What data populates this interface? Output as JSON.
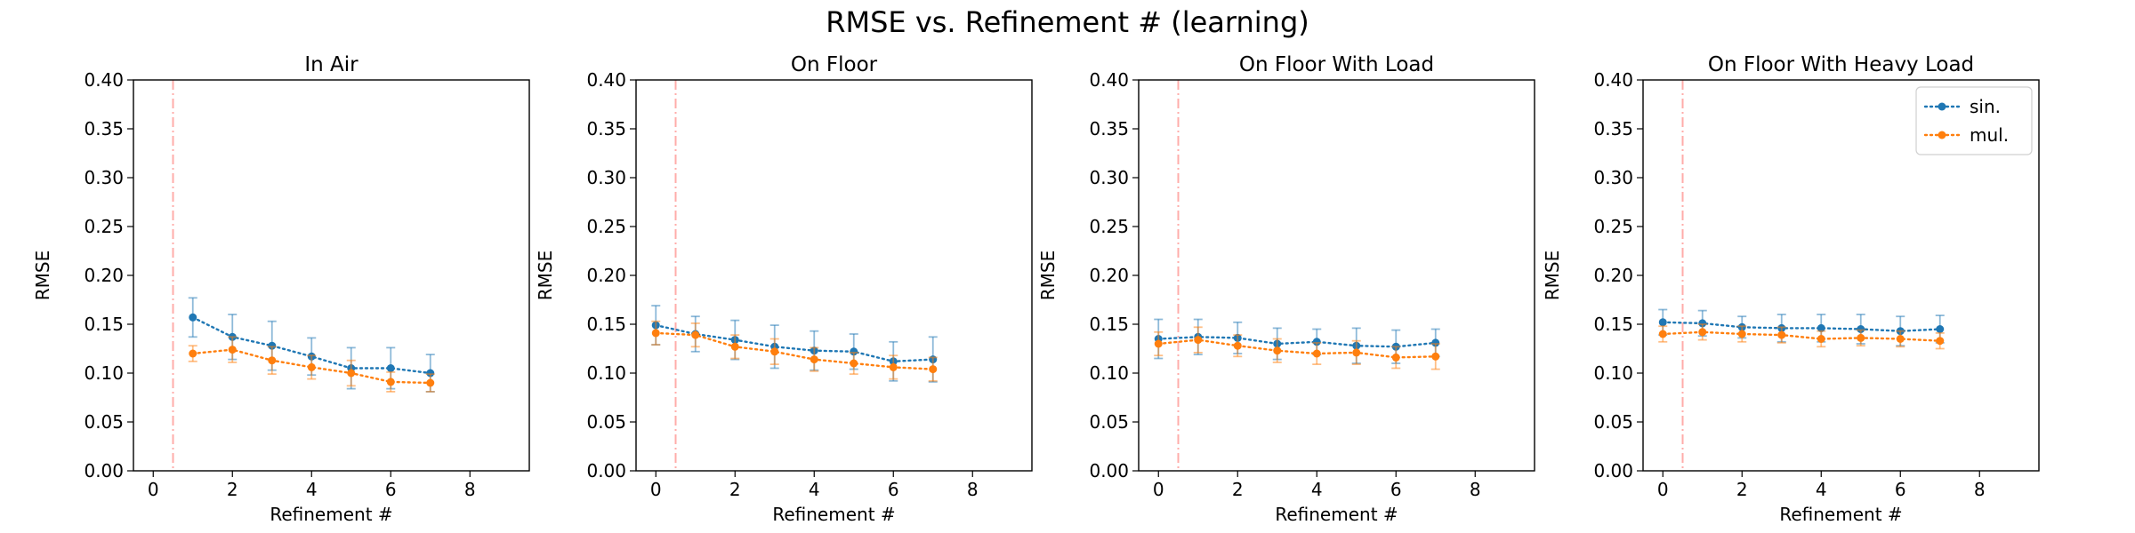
{
  "figure": {
    "title": "RMSE vs. Refinement # (learning)"
  },
  "chart_data": [
    {
      "type": "line",
      "title": "In Air",
      "xlabel": "Refinement #",
      "ylabel": "RMSE",
      "xlim": [
        -0.5,
        9.5
      ],
      "ylim": [
        0,
        0.4
      ],
      "xticks": [
        0,
        2,
        4,
        6,
        8
      ],
      "yticks": [
        0.0,
        0.05,
        0.1,
        0.15,
        0.2,
        0.25,
        0.3,
        0.35,
        0.4
      ],
      "vline_x": 0.5,
      "grid": false,
      "series": [
        {
          "name": "sin.",
          "color": "#1f77b4",
          "x": [
            1,
            2,
            3,
            4,
            5,
            6,
            7
          ],
          "values": [
            0.157,
            0.137,
            0.128,
            0.117,
            0.105,
            0.105,
            0.1
          ],
          "errors": [
            0.02,
            0.023,
            0.025,
            0.019,
            0.021,
            0.021,
            0.019
          ]
        },
        {
          "name": "mul.",
          "color": "#ff7f0e",
          "x": [
            1,
            2,
            3,
            4,
            5,
            6,
            7
          ],
          "values": [
            0.12,
            0.124,
            0.113,
            0.106,
            0.1,
            0.091,
            0.09
          ],
          "errors": [
            0.008,
            0.013,
            0.014,
            0.012,
            0.013,
            0.01,
            0.009
          ]
        }
      ]
    },
    {
      "type": "line",
      "title": "On Floor",
      "xlabel": "Refinement #",
      "ylabel": "RMSE",
      "xlim": [
        -0.5,
        9.5
      ],
      "ylim": [
        0,
        0.4
      ],
      "xticks": [
        0,
        2,
        4,
        6,
        8
      ],
      "yticks": [
        0.0,
        0.05,
        0.1,
        0.15,
        0.2,
        0.25,
        0.3,
        0.35,
        0.4
      ],
      "vline_x": 0.5,
      "grid": false,
      "series": [
        {
          "name": "sin.",
          "color": "#1f77b4",
          "x": [
            0,
            1,
            2,
            3,
            4,
            5,
            6,
            7
          ],
          "values": [
            0.149,
            0.14,
            0.134,
            0.127,
            0.123,
            0.122,
            0.112,
            0.114
          ],
          "errors": [
            0.02,
            0.018,
            0.02,
            0.022,
            0.02,
            0.018,
            0.02,
            0.023
          ]
        },
        {
          "name": "mul.",
          "color": "#ff7f0e",
          "x": [
            0,
            1,
            2,
            3,
            4,
            5,
            6,
            7
          ],
          "values": [
            0.141,
            0.139,
            0.127,
            0.122,
            0.114,
            0.11,
            0.106,
            0.104
          ],
          "errors": [
            0.012,
            0.012,
            0.012,
            0.013,
            0.012,
            0.011,
            0.012,
            0.012
          ]
        }
      ]
    },
    {
      "type": "line",
      "title": "On Floor With Load",
      "xlabel": "Refinement #",
      "ylabel": "RMSE",
      "xlim": [
        -0.5,
        9.5
      ],
      "ylim": [
        0,
        0.4
      ],
      "xticks": [
        0,
        2,
        4,
        6,
        8
      ],
      "yticks": [
        0.0,
        0.05,
        0.1,
        0.15,
        0.2,
        0.25,
        0.3,
        0.35,
        0.4
      ],
      "vline_x": 0.5,
      "grid": false,
      "series": [
        {
          "name": "sin.",
          "color": "#1f77b4",
          "x": [
            0,
            1,
            2,
            3,
            4,
            5,
            6,
            7
          ],
          "values": [
            0.135,
            0.137,
            0.136,
            0.13,
            0.132,
            0.128,
            0.127,
            0.131
          ],
          "errors": [
            0.02,
            0.018,
            0.016,
            0.016,
            0.013,
            0.018,
            0.017,
            0.014
          ]
        },
        {
          "name": "mul.",
          "color": "#ff7f0e",
          "x": [
            0,
            1,
            2,
            3,
            4,
            5,
            6,
            7
          ],
          "values": [
            0.13,
            0.134,
            0.128,
            0.123,
            0.12,
            0.121,
            0.116,
            0.117
          ],
          "errors": [
            0.012,
            0.013,
            0.011,
            0.012,
            0.011,
            0.012,
            0.011,
            0.013
          ]
        }
      ]
    },
    {
      "type": "line",
      "title": "On Floor With Heavy Load",
      "xlabel": "Refinement #",
      "ylabel": "RMSE",
      "xlim": [
        -0.5,
        9.5
      ],
      "ylim": [
        0,
        0.4
      ],
      "xticks": [
        0,
        2,
        4,
        6,
        8
      ],
      "yticks": [
        0.0,
        0.05,
        0.1,
        0.15,
        0.2,
        0.25,
        0.3,
        0.35,
        0.4
      ],
      "vline_x": 0.5,
      "grid": false,
      "legend": "top-right",
      "series": [
        {
          "name": "sin.",
          "color": "#1f77b4",
          "x": [
            0,
            1,
            2,
            3,
            4,
            5,
            6,
            7
          ],
          "values": [
            0.152,
            0.151,
            0.147,
            0.146,
            0.146,
            0.145,
            0.143,
            0.145
          ],
          "errors": [
            0.013,
            0.013,
            0.011,
            0.014,
            0.014,
            0.015,
            0.015,
            0.014
          ]
        },
        {
          "name": "mul.",
          "color": "#ff7f0e",
          "x": [
            0,
            1,
            2,
            3,
            4,
            5,
            6,
            7
          ],
          "values": [
            0.14,
            0.142,
            0.14,
            0.139,
            0.135,
            0.136,
            0.135,
            0.133
          ],
          "errors": [
            0.008,
            0.008,
            0.008,
            0.008,
            0.008,
            0.008,
            0.008,
            0.008
          ]
        }
      ]
    }
  ]
}
